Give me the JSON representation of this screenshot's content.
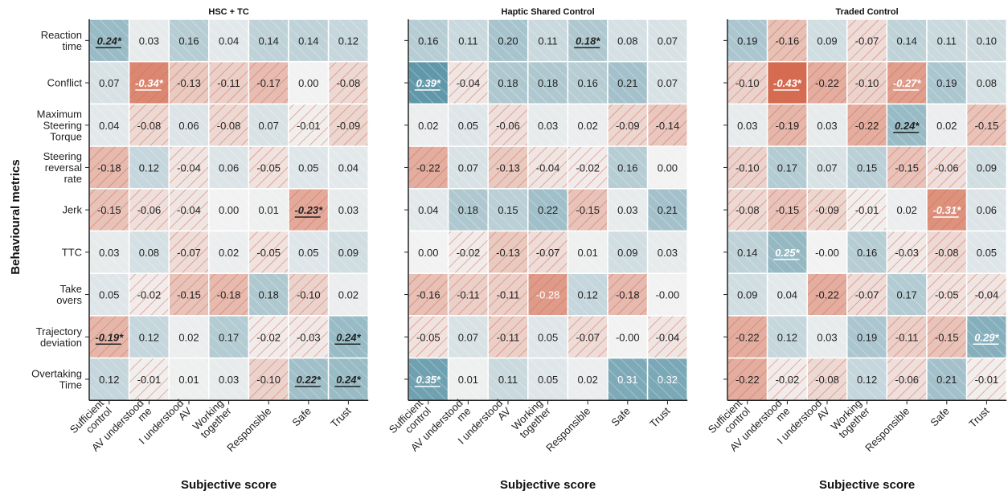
{
  "figure": {
    "ylabel": "Behavioural metrics",
    "xlabel": "Subjective score",
    "row_labels": [
      [
        "Reaction",
        "time"
      ],
      [
        "Conflict"
      ],
      [
        "Maximum",
        "Steering",
        "Torque"
      ],
      [
        "Steering",
        "reversal",
        "rate"
      ],
      [
        "Jerk"
      ],
      [
        "TTC"
      ],
      [
        "Take",
        "overs"
      ],
      [
        "Trajectory",
        "deviation"
      ],
      [
        "Overtaking",
        "Time"
      ]
    ],
    "col_labels": [
      [
        "Sufficient",
        "control"
      ],
      [
        "AV understood",
        "me"
      ],
      [
        "I understood",
        "AV"
      ],
      [
        "Working",
        "together"
      ],
      [
        "Responsible"
      ],
      [
        "Safe"
      ],
      [
        "Trust"
      ]
    ],
    "colors": {
      "positive": "#4a8a9e",
      "negative": "#d4664a",
      "neutral": "#f2f2f2"
    }
  },
  "chart_data": [
    {
      "type": "heatmap",
      "title": "HSC + TC",
      "values": [
        [
          0.24,
          0.03,
          0.16,
          0.04,
          0.14,
          0.14,
          0.12
        ],
        [
          0.07,
          -0.34,
          -0.13,
          -0.11,
          -0.17,
          0.0,
          -0.08
        ],
        [
          0.04,
          -0.08,
          0.06,
          -0.08,
          0.07,
          -0.01,
          -0.09
        ],
        [
          -0.18,
          0.12,
          -0.04,
          0.06,
          -0.05,
          0.05,
          0.04
        ],
        [
          -0.15,
          -0.06,
          -0.04,
          0.0,
          0.01,
          -0.23,
          0.03
        ],
        [
          0.03,
          0.08,
          -0.07,
          0.02,
          -0.05,
          0.05,
          0.09
        ],
        [
          0.05,
          -0.02,
          -0.15,
          -0.18,
          0.18,
          -0.1,
          0.02
        ],
        [
          -0.19,
          0.12,
          0.02,
          0.17,
          -0.02,
          -0.03,
          0.24
        ],
        [
          0.12,
          -0.01,
          0.01,
          0.03,
          -0.1,
          0.22,
          0.24
        ]
      ],
      "significant": [
        [
          0,
          0
        ],
        [
          1,
          1
        ],
        [
          4,
          5
        ],
        [
          7,
          0
        ],
        [
          7,
          6
        ],
        [
          8,
          5
        ],
        [
          8,
          6
        ]
      ]
    },
    {
      "type": "heatmap",
      "title": "Haptic Shared Control",
      "values": [
        [
          0.16,
          0.11,
          0.2,
          0.11,
          0.18,
          0.08,
          0.07
        ],
        [
          0.39,
          -0.04,
          0.18,
          0.18,
          0.16,
          0.21,
          0.07
        ],
        [
          0.02,
          0.05,
          -0.06,
          0.03,
          0.02,
          -0.09,
          -0.14
        ],
        [
          -0.22,
          0.07,
          -0.13,
          -0.04,
          -0.02,
          0.16,
          0.0
        ],
        [
          0.04,
          0.18,
          0.15,
          0.22,
          -0.15,
          0.03,
          0.21
        ],
        [
          0.0,
          -0.02,
          -0.13,
          -0.07,
          0.01,
          0.09,
          0.03
        ],
        [
          -0.16,
          -0.11,
          -0.11,
          -0.28,
          0.12,
          -0.18,
          -0.0
        ],
        [
          -0.05,
          0.07,
          -0.11,
          0.05,
          -0.07,
          -0.0,
          -0.04
        ],
        [
          0.35,
          0.01,
          0.11,
          0.05,
          0.02,
          0.31,
          0.32
        ]
      ],
      "significant": [
        [
          0,
          4
        ],
        [
          1,
          0
        ],
        [
          8,
          0
        ]
      ]
    },
    {
      "type": "heatmap",
      "title": "Traded Control",
      "values": [
        [
          0.19,
          -0.16,
          0.09,
          -0.07,
          0.14,
          0.11,
          0.1
        ],
        [
          -0.1,
          -0.43,
          -0.22,
          -0.1,
          -0.27,
          0.19,
          0.08
        ],
        [
          0.03,
          -0.19,
          0.03,
          -0.22,
          0.24,
          0.02,
          -0.15
        ],
        [
          -0.1,
          0.17,
          0.07,
          0.15,
          -0.15,
          -0.06,
          0.09
        ],
        [
          -0.08,
          -0.15,
          -0.09,
          -0.01,
          0.02,
          -0.31,
          0.06
        ],
        [
          0.14,
          0.25,
          -0.0,
          0.16,
          -0.03,
          -0.08,
          0.05
        ],
        [
          0.09,
          0.04,
          -0.22,
          -0.07,
          0.17,
          -0.05,
          -0.04
        ],
        [
          -0.22,
          0.12,
          0.03,
          0.19,
          -0.11,
          -0.15,
          0.29
        ],
        [
          -0.22,
          -0.02,
          -0.08,
          0.12,
          -0.06,
          0.21,
          -0.01
        ]
      ],
      "significant": [
        [
          1,
          1
        ],
        [
          1,
          4
        ],
        [
          2,
          4
        ],
        [
          4,
          5
        ],
        [
          5,
          1
        ],
        [
          7,
          6
        ]
      ]
    }
  ]
}
